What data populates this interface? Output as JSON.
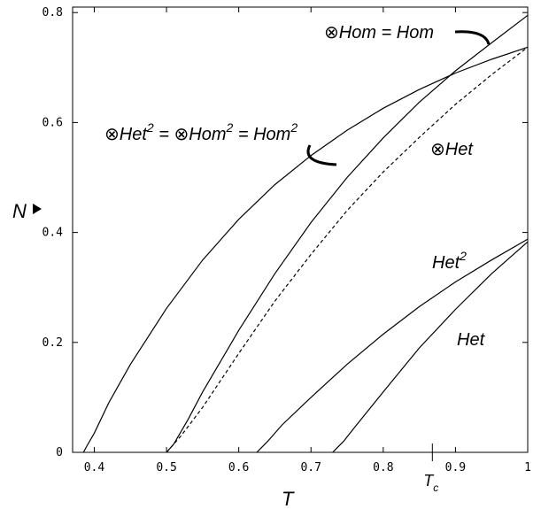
{
  "chart_data": {
    "type": "line",
    "xlabel": "T",
    "ylabel": "N",
    "xlim": [
      0.37,
      1.0
    ],
    "ylim": [
      0,
      0.81
    ],
    "x_ticks": [
      0.4,
      0.5,
      0.6,
      0.7,
      0.8,
      0.9,
      1
    ],
    "x_tick_labels": [
      "0.4",
      "0.5",
      "0.6",
      "0.7",
      "0.8",
      "0.9",
      "1"
    ],
    "y_ticks": [
      0,
      0.2,
      0.4,
      0.6,
      0.8
    ],
    "y_tick_labels": [
      "0",
      "0.2",
      "0.4",
      "0.6",
      "0.8"
    ],
    "marker_label": "T_c",
    "marker_x": 0.868,
    "series": [
      {
        "name": "⊗Het² = ⊗Hom² = Hom²",
        "style": "solid",
        "points": [
          [
            0.385,
            0
          ],
          [
            0.39,
            0.012
          ],
          [
            0.4,
            0.035
          ],
          [
            0.42,
            0.09
          ],
          [
            0.45,
            0.16
          ],
          [
            0.5,
            0.262
          ],
          [
            0.55,
            0.35
          ],
          [
            0.6,
            0.424
          ],
          [
            0.65,
            0.487
          ],
          [
            0.7,
            0.54
          ],
          [
            0.75,
            0.586
          ],
          [
            0.8,
            0.626
          ],
          [
            0.85,
            0.66
          ],
          [
            0.9,
            0.69
          ],
          [
            0.95,
            0.715
          ],
          [
            1.0,
            0.737
          ]
        ]
      },
      {
        "name": "⊗Hom = Hom",
        "style": "solid",
        "points": [
          [
            0.5,
            0
          ],
          [
            0.51,
            0.015
          ],
          [
            0.53,
            0.06
          ],
          [
            0.55,
            0.11
          ],
          [
            0.6,
            0.222
          ],
          [
            0.65,
            0.325
          ],
          [
            0.7,
            0.418
          ],
          [
            0.75,
            0.5
          ],
          [
            0.8,
            0.572
          ],
          [
            0.85,
            0.637
          ],
          [
            0.9,
            0.694
          ],
          [
            0.95,
            0.745
          ],
          [
            1.0,
            0.795
          ]
        ]
      },
      {
        "name": "⊗Het",
        "style": "dashed",
        "points": [
          [
            0.5,
            0
          ],
          [
            0.52,
            0.03
          ],
          [
            0.55,
            0.082
          ],
          [
            0.6,
            0.18
          ],
          [
            0.65,
            0.275
          ],
          [
            0.7,
            0.36
          ],
          [
            0.75,
            0.44
          ],
          [
            0.8,
            0.51
          ],
          [
            0.85,
            0.573
          ],
          [
            0.9,
            0.633
          ],
          [
            0.95,
            0.687
          ],
          [
            1.0,
            0.737
          ]
        ]
      },
      {
        "name": "Het²",
        "style": "solid",
        "points": [
          [
            0.625,
            0
          ],
          [
            0.64,
            0.02
          ],
          [
            0.66,
            0.05
          ],
          [
            0.7,
            0.1
          ],
          [
            0.75,
            0.16
          ],
          [
            0.8,
            0.215
          ],
          [
            0.85,
            0.265
          ],
          [
            0.9,
            0.31
          ],
          [
            0.95,
            0.35
          ],
          [
            1.0,
            0.388
          ]
        ]
      },
      {
        "name": "Het",
        "style": "solid",
        "points": [
          [
            0.73,
            0
          ],
          [
            0.745,
            0.02
          ],
          [
            0.76,
            0.045
          ],
          [
            0.8,
            0.11
          ],
          [
            0.85,
            0.19
          ],
          [
            0.9,
            0.26
          ],
          [
            0.95,
            0.325
          ],
          [
            1.0,
            0.383
          ]
        ]
      }
    ],
    "annotations": [
      {
        "id": "hom",
        "symbol": "⊗",
        "text": "Hom = Hom"
      },
      {
        "id": "sq",
        "symbol": "⊗",
        "text_a": "Het",
        "sup_a": "2",
        "mid_a": " = ",
        "symbol_b": "⊗",
        "text_b": "Hom",
        "sup_b": "2",
        "mid_b": " = Hom",
        "sup_c": "2"
      },
      {
        "id": "het_tensor",
        "symbol": "⊗",
        "text": "Het"
      },
      {
        "id": "het2",
        "text": "Het",
        "sup": "2"
      },
      {
        "id": "het",
        "text": "Het"
      }
    ]
  }
}
